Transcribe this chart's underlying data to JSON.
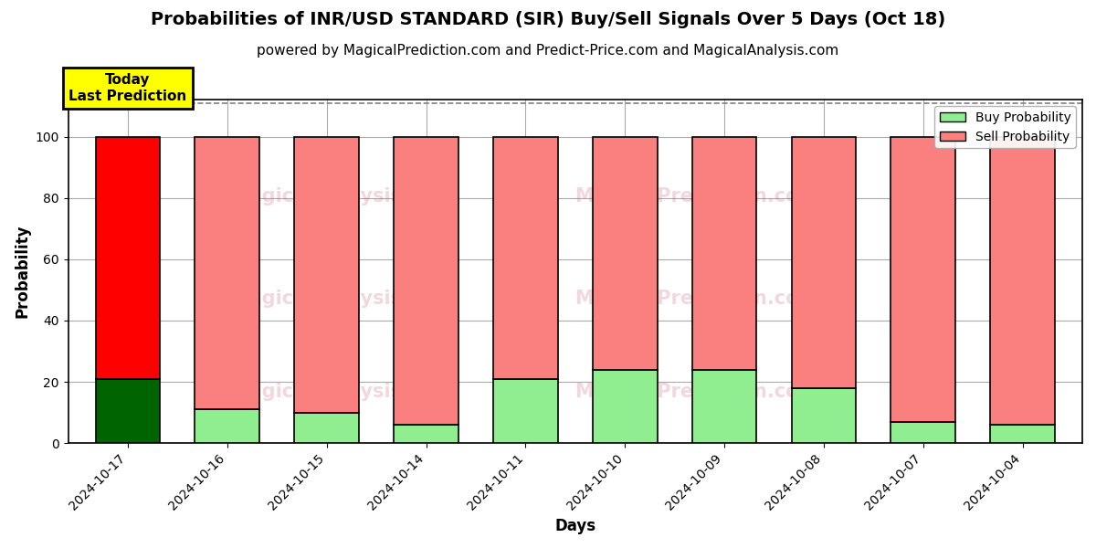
{
  "title": "Probabilities of INR/USD STANDARD (SIR) Buy/Sell Signals Over 5 Days (Oct 18)",
  "subtitle": "powered by MagicalPrediction.com and Predict-Price.com and MagicalAnalysis.com",
  "xlabel": "Days",
  "ylabel": "Probability",
  "categories": [
    "2024-10-17",
    "2024-10-16",
    "2024-10-15",
    "2024-10-14",
    "2024-10-11",
    "2024-10-10",
    "2024-10-09",
    "2024-10-08",
    "2024-10-07",
    "2024-10-04"
  ],
  "buy_values": [
    21,
    11,
    10,
    6,
    21,
    24,
    24,
    18,
    7,
    6
  ],
  "sell_values": [
    79,
    89,
    90,
    94,
    79,
    76,
    76,
    82,
    93,
    94
  ],
  "today_buy_color": "#006400",
  "today_sell_color": "#FF0000",
  "other_buy_color": "#90EE90",
  "other_sell_color": "#FA8080",
  "today_label_bg": "#FFFF00",
  "today_label_text": "Today\nLast Prediction",
  "ylim_max": 112,
  "yticks": [
    0,
    20,
    40,
    60,
    80,
    100
  ],
  "dashed_line_y": 111,
  "legend_buy": "Buy Probability",
  "legend_sell": "Sell Probability",
  "title_fontsize": 14,
  "subtitle_fontsize": 11,
  "axis_label_fontsize": 12,
  "tick_fontsize": 10,
  "bar_width": 0.65,
  "background_color": "#FFFFFF",
  "grid_color": "#AAAAAA"
}
